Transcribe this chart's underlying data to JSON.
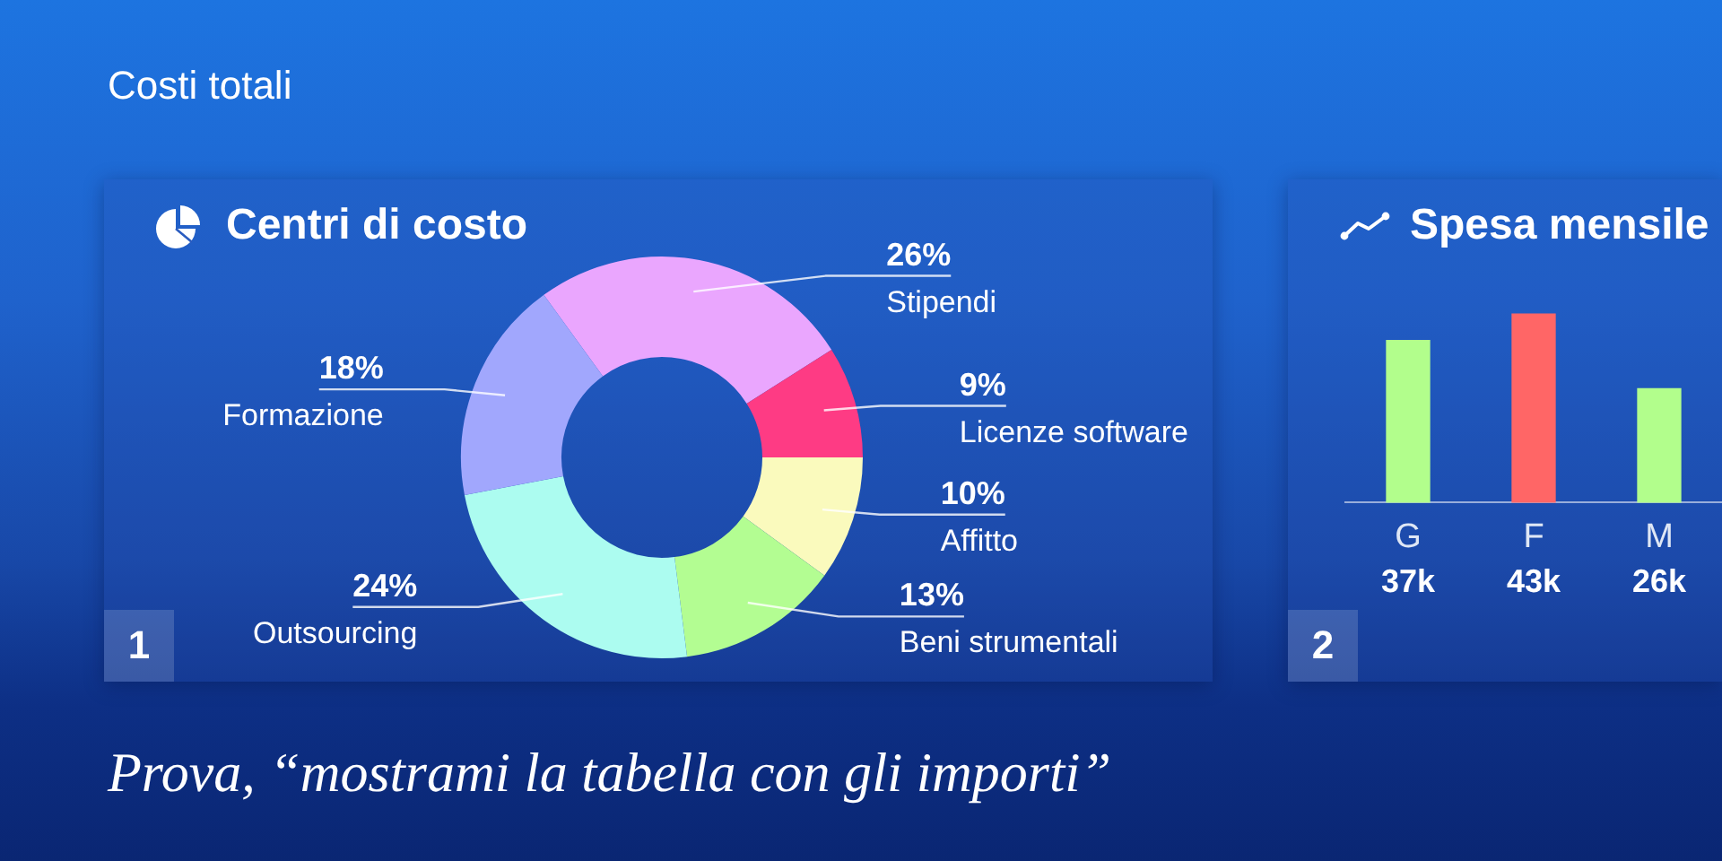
{
  "chart_data": [
    {
      "type": "other",
      "title": "Costi totali",
      "annotations": [
        "Prova, “mostrami la tabella con gli importi”"
      ]
    },
    {
      "type": "donut",
      "title": "Centri di costo",
      "categories": [
        "Stipendi",
        "Licenze software",
        "Affitto",
        "Beni strumentali",
        "Outsourcing",
        "Formazione"
      ],
      "values": [
        26,
        9,
        10,
        13,
        24,
        18
      ],
      "colors": [
        "#eaa6fe",
        "#fe3b84",
        "#fafabd",
        "#b3fd92",
        "#acfcf0",
        "#a1a7fd"
      ],
      "value_labels": [
        "26%",
        "9%",
        "10%",
        "13%",
        "24%",
        "18%"
      ],
      "annotations": [
        "1"
      ]
    },
    {
      "type": "bar",
      "title": "Spesa mensile",
      "categories": [
        "G",
        "F",
        "M"
      ],
      "values": [
        37000,
        43000,
        26000
      ],
      "colors": [
        "#b2fe8c",
        "#ff6666",
        "#b2fe8c"
      ],
      "value_labels": [
        "37k",
        "43k",
        "26k"
      ],
      "tick_labels": "x",
      "annotations": [
        "2"
      ]
    }
  ]
}
